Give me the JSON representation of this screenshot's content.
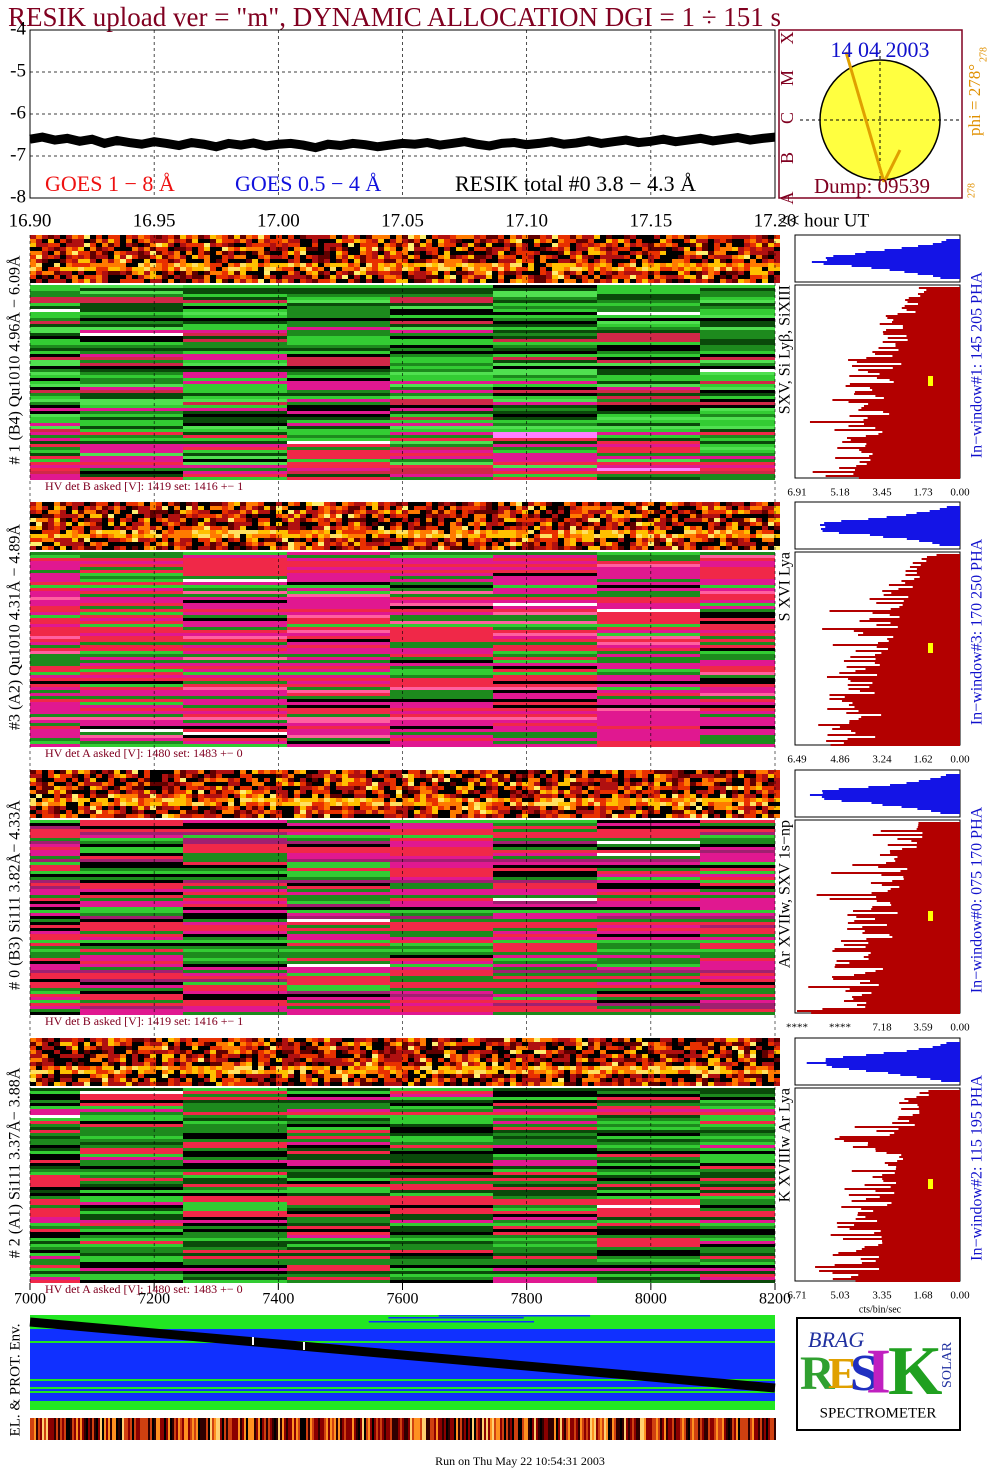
{
  "title": "RESIK upload ver = \"m\", DYNAMIC ALLOCATION  DGI =   1 ÷ 151 s",
  "footer": "Run on Thu May 22 10:54:31 2003",
  "chart_data": [
    {
      "type": "line",
      "xlabel": "<< hour UT",
      "xlim": [
        16.9,
        17.2
      ],
      "xticks": [
        {
          "value": 16.9,
          "label": "16.90"
        },
        {
          "value": 16.95,
          "label": "16.95"
        },
        {
          "value": 17,
          "label": "17.00"
        },
        {
          "value": 17.05,
          "label": "17.05"
        },
        {
          "value": 17.1,
          "label": "17.10"
        },
        {
          "value": 17.15,
          "label": "17.15"
        },
        {
          "value": 17.2,
          "label": "17.20"
        }
      ],
      "ylim": [
        -8,
        -4
      ],
      "yticks": [
        -4,
        -5,
        -6,
        -7,
        -8
      ],
      "grid": true,
      "legend": [
        {
          "text": "GOES 1 − 8 Å",
          "color": "#ee1111"
        },
        {
          "text": "GOES 0.5 − 4 Å",
          "color": "#1111dd"
        }
      ],
      "x": [
        16.9,
        16.905,
        16.91,
        16.915,
        16.92,
        16.925,
        16.93,
        16.935,
        16.94,
        16.945,
        16.95,
        16.955,
        16.96,
        16.965,
        16.97,
        16.975,
        16.98,
        16.985,
        16.99,
        16.995,
        17,
        17.005,
        17.01,
        17.015,
        17.02,
        17.025,
        17.03,
        17.035,
        17.04,
        17.045,
        17.05,
        17.055,
        17.06,
        17.065,
        17.07,
        17.075,
        17.08,
        17.085,
        17.09,
        17.095,
        17.1,
        17.105,
        17.11,
        17.115,
        17.12,
        17.125,
        17.13,
        17.135,
        17.14,
        17.145,
        17.15,
        17.155,
        17.16,
        17.165,
        17.17,
        17.175,
        17.18,
        17.185,
        17.19,
        17.195,
        17.2
      ],
      "series": [
        {
          "name": "RESIK total #0  3.8 − 4.3 Å",
          "color": "#000000",
          "values": [
            -6.6,
            -6.55,
            -6.62,
            -6.58,
            -6.65,
            -6.6,
            -6.7,
            -6.63,
            -6.68,
            -6.72,
            -6.66,
            -6.7,
            -6.75,
            -6.68,
            -6.72,
            -6.78,
            -6.7,
            -6.74,
            -6.69,
            -6.76,
            -6.72,
            -6.7,
            -6.74,
            -6.8,
            -6.72,
            -6.75,
            -6.7,
            -6.73,
            -6.78,
            -6.74,
            -6.7,
            -6.72,
            -6.68,
            -6.74,
            -6.7,
            -6.66,
            -6.72,
            -6.76,
            -6.7,
            -6.68,
            -6.73,
            -6.7,
            -6.66,
            -6.72,
            -6.69,
            -6.64,
            -6.7,
            -6.66,
            -6.62,
            -6.68,
            -6.65,
            -6.6,
            -6.66,
            -6.62,
            -6.58,
            -6.64,
            -6.6,
            -6.56,
            -6.62,
            -6.58,
            -6.55
          ]
        }
      ]
    },
    {
      "type": "env",
      "ylabel": "EL. & PROT. Env.",
      "xlim": [
        7000,
        8200
      ],
      "xticks": [
        7000,
        7200,
        7400,
        7600,
        7800,
        8000,
        8200
      ]
    }
  ],
  "sun": {
    "date": "14 04 2003",
    "dump": "Dump: 09539",
    "phi": "phi = 278°",
    "phi_sup": "278",
    "phi_low": "278",
    "classes": [
      "X",
      "M",
      "C",
      "B",
      "A"
    ]
  },
  "panels": [
    {
      "label": "# 1 (B4) Qu1010 4.96Å − 6.09Å",
      "lines": "SXV, Si Lyβ, SiXIII",
      "window": "In−window#1:  145 205 PHA",
      "hv": "HV det B asked [V]:  1419 set:  1416 +−   1",
      "ticks": [
        "6.91",
        "5.18",
        "3.45",
        "1.73",
        "0.00"
      ]
    },
    {
      "label": "#3 (A2) Qu1010  4.31Å − 4.89Å",
      "lines": "S XVI Lya",
      "window": "In−window#3:  170 250 PHA",
      "hv": "HV det A asked [V]:  1480 set:  1483 +−   0",
      "ticks": [
        "6.49",
        "4.86",
        "3.24",
        "1.62",
        "0.00"
      ]
    },
    {
      "label": "# 0 (B3) Si111  3.82Å− 4.33Å",
      "lines": "Ar XVIIw,  SXV 1s−np",
      "window": "In−window#0:  075 170 PHA",
      "hv": "HV det B asked [V]:  1419 set:  1416 +−   1",
      "ticks": [
        "****",
        "****",
        "7.18",
        "3.59",
        "0.00"
      ]
    },
    {
      "label": "# 2 (A1) Si111  3.37Å− 3.88Å",
      "lines": "K XVIIIw  Ar Lya",
      "window": "In−window#2:  115 195 PHA",
      "hv": "HV det A asked [V]:  1480 set:  1483 +−   0",
      "ticks": [
        "6.71",
        "5.03",
        "3.35",
        "1.68",
        "0.00"
      ],
      "unit": "cts/bin/sec"
    }
  ],
  "logo": {
    "brag": "BRAG",
    "letters": [
      "R",
      "E",
      "S",
      "I",
      "K"
    ],
    "solar": "SOLAR",
    "name": "SPECTROMETER"
  }
}
